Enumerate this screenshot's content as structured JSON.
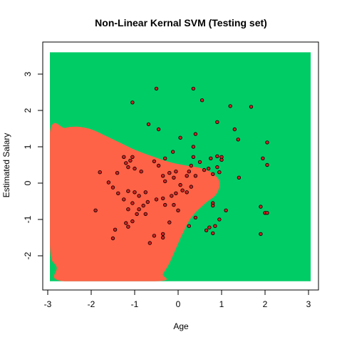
{
  "chart_data": {
    "type": "scatter",
    "title": "Non-Linear Kernal SVM (Testing set)",
    "xlabel": "Age",
    "ylabel": "Estimated Salary",
    "xlim": [
      -3.0,
      3.1
    ],
    "ylim": [
      -2.7,
      3.6
    ],
    "xticks": [
      -3,
      -2,
      -1,
      0,
      1,
      2,
      3
    ],
    "yticks": [
      -2,
      -1,
      0,
      1,
      2,
      3
    ],
    "grid": false,
    "colors": {
      "region_class_1": "#00CC66",
      "region_class_0": "#FF6347",
      "point_fill": "#cc2222",
      "point_stroke": "#000000"
    },
    "decision_boundary": [
      [
        -2.95,
        1.38
      ],
      [
        -2.6,
        1.52
      ],
      [
        -2.3,
        1.55
      ],
      [
        -2.0,
        1.48
      ],
      [
        -1.7,
        1.32
      ],
      [
        -1.35,
        1.12
      ],
      [
        -1.0,
        0.92
      ],
      [
        -0.6,
        0.74
      ],
      [
        -0.2,
        0.58
      ],
      [
        0.2,
        0.48
      ],
      [
        0.5,
        0.42
      ],
      [
        0.75,
        0.3
      ],
      [
        0.95,
        0.05
      ],
      [
        0.88,
        -0.3
      ],
      [
        0.6,
        -0.58
      ],
      [
        0.3,
        -0.95
      ],
      [
        0.1,
        -1.4
      ],
      [
        -0.05,
        -1.8
      ],
      [
        -0.2,
        -2.2
      ],
      [
        -0.35,
        -2.5
      ],
      [
        -0.45,
        -2.7
      ],
      [
        -2.65,
        -2.7
      ],
      [
        -2.8,
        -2.3
      ],
      [
        -2.95,
        -1.7
      ]
    ],
    "points": [
      [
        -0.5,
        2.6
      ],
      [
        0.35,
        2.6
      ],
      [
        -1.05,
        2.22
      ],
      [
        0.55,
        2.28
      ],
      [
        1.2,
        2.12
      ],
      [
        1.68,
        2.1
      ],
      [
        0.9,
        1.68
      ],
      [
        -0.68,
        1.62
      ],
      [
        -0.45,
        1.48
      ],
      [
        1.3,
        1.48
      ],
      [
        0.4,
        1.35
      ],
      [
        1.38,
        1.2
      ],
      [
        0.05,
        1.25
      ],
      [
        2.05,
        1.12
      ],
      [
        0.35,
        1.0
      ],
      [
        1.0,
        0.72
      ],
      [
        0.9,
        0.74
      ],
      [
        1.0,
        0.64
      ],
      [
        1.95,
        0.68
      ],
      [
        2.05,
        0.5
      ],
      [
        -0.3,
        0.68
      ],
      [
        0.35,
        0.72
      ],
      [
        0.5,
        0.58
      ],
      [
        0.75,
        0.68
      ],
      [
        0.9,
        0.44
      ],
      [
        0.7,
        0.4
      ],
      [
        0.6,
        0.36
      ],
      [
        0.8,
        0.25
      ],
      [
        -1.25,
        0.72
      ],
      [
        -1.05,
        0.72
      ],
      [
        -1.1,
        0.62
      ],
      [
        -1.2,
        0.55
      ],
      [
        -1.15,
        0.44
      ],
      [
        -1.0,
        0.4
      ],
      [
        -0.85,
        0.32
      ],
      [
        -0.55,
        0.6
      ],
      [
        -0.45,
        0.48
      ],
      [
        -0.12,
        0.86
      ],
      [
        0.3,
        0.48
      ],
      [
        0.25,
        0.32
      ],
      [
        -0.05,
        0.32
      ],
      [
        -0.2,
        0.28
      ],
      [
        -0.35,
        0.2
      ],
      [
        -0.1,
        0.15
      ],
      [
        0.2,
        0.2
      ],
      [
        0.4,
        0.2
      ],
      [
        -1.8,
        0.3
      ],
      [
        -1.4,
        0.28
      ],
      [
        -1.6,
        0.02
      ],
      [
        -1.5,
        -0.12
      ],
      [
        -0.3,
        0.05
      ],
      [
        0.05,
        -0.05
      ],
      [
        0.3,
        -0.1
      ],
      [
        0.1,
        -0.2
      ],
      [
        0.2,
        -0.25
      ],
      [
        -0.05,
        -0.28
      ],
      [
        -0.15,
        -0.35
      ],
      [
        -0.35,
        -0.42
      ],
      [
        -0.5,
        -0.45
      ],
      [
        -1.38,
        -0.28
      ],
      [
        -1.15,
        -0.22
      ],
      [
        -1.0,
        -0.25
      ],
      [
        -0.9,
        -0.35
      ],
      [
        -0.75,
        -0.25
      ],
      [
        -0.7,
        -0.52
      ],
      [
        -0.8,
        -0.62
      ],
      [
        -0.9,
        -0.72
      ],
      [
        -0.95,
        -0.85
      ],
      [
        -0.75,
        -0.85
      ],
      [
        -1.05,
        -0.55
      ],
      [
        -1.15,
        -0.72
      ],
      [
        -1.25,
        -0.45
      ],
      [
        -1.2,
        -1.1
      ],
      [
        -1.05,
        -1.05
      ],
      [
        -1.15,
        -1.2
      ],
      [
        -1.45,
        -1.28
      ],
      [
        -1.5,
        -1.52
      ],
      [
        -1.9,
        -0.75
      ],
      [
        -0.3,
        -0.6
      ],
      [
        -0.1,
        -0.6
      ],
      [
        0.0,
        -0.75
      ],
      [
        -0.2,
        -1.08
      ],
      [
        -0.35,
        -1.5
      ],
      [
        -0.35,
        -1.4
      ],
      [
        -0.55,
        -1.45
      ],
      [
        -0.65,
        -1.65
      ],
      [
        0.25,
        -1.18
      ],
      [
        0.4,
        -0.95
      ],
      [
        0.8,
        -0.55
      ],
      [
        0.8,
        -0.62
      ],
      [
        1.1,
        -0.75
      ],
      [
        0.95,
        -1.0
      ],
      [
        0.85,
        -1.18
      ],
      [
        0.72,
        -1.22
      ],
      [
        0.65,
        -1.3
      ],
      [
        0.8,
        -1.38
      ],
      [
        1.9,
        -0.65
      ],
      [
        2.0,
        -0.82
      ],
      [
        2.05,
        -0.82
      ],
      [
        1.9,
        -1.4
      ],
      [
        1.4,
        0.15
      ],
      [
        0.95,
        0.3
      ]
    ]
  }
}
